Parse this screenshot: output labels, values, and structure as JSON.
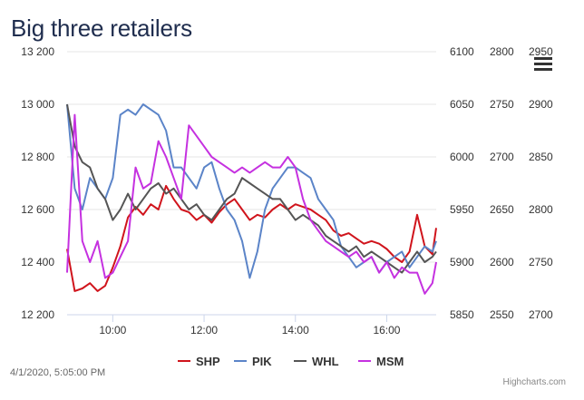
{
  "title": "Big three retailers",
  "timestamp": "4/1/2020, 5:05:00 PM",
  "credits": "Highcharts.com",
  "menu_icon": "hamburger-menu-icon",
  "chart_data": {
    "type": "line",
    "title": "Big three retailers",
    "x_ticks": [
      "10:00",
      "12:00",
      "14:00",
      "16:00"
    ],
    "x_range": [
      "09:00",
      "17:05"
    ],
    "axes": [
      {
        "id": "shp",
        "ticks": [
          "13 200",
          "13 000",
          "12 800",
          "12 600",
          "12 400",
          "12 200"
        ],
        "range": [
          12200,
          13200
        ]
      },
      {
        "id": "pik",
        "ticks": [
          "6100",
          "6050",
          "6000",
          "5950",
          "5900",
          "5850"
        ],
        "range": [
          5850,
          6100
        ]
      },
      {
        "id": "whl",
        "ticks": [
          "2800",
          "2750",
          "2700",
          "2650",
          "2600",
          "2550"
        ],
        "range": [
          2550,
          2800
        ]
      },
      {
        "id": "msm",
        "ticks": [
          "2950",
          "2900",
          "2850",
          "2800",
          "2750",
          "2700"
        ],
        "range": [
          2700,
          2950
        ]
      }
    ],
    "grid": true,
    "legend_position": "bottom",
    "series": [
      {
        "name": "SHP",
        "color": "#d0141c",
        "axis": "shp",
        "x": [
          "09:00",
          "09:10",
          "09:20",
          "09:30",
          "09:40",
          "09:50",
          "10:00",
          "10:10",
          "10:20",
          "10:30",
          "10:40",
          "10:50",
          "11:00",
          "11:10",
          "11:20",
          "11:30",
          "11:40",
          "11:50",
          "12:00",
          "12:10",
          "12:20",
          "12:30",
          "12:40",
          "12:50",
          "13:00",
          "13:10",
          "13:20",
          "13:30",
          "13:40",
          "13:50",
          "14:00",
          "14:10",
          "14:20",
          "14:30",
          "14:40",
          "14:50",
          "15:00",
          "15:10",
          "15:20",
          "15:30",
          "15:40",
          "15:50",
          "16:00",
          "16:10",
          "16:20",
          "16:30",
          "16:40",
          "16:50",
          "17:00",
          "17:05"
        ],
        "values": [
          12450,
          12290,
          12300,
          12320,
          12290,
          12310,
          12380,
          12460,
          12570,
          12610,
          12580,
          12620,
          12600,
          12690,
          12640,
          12600,
          12590,
          12560,
          12580,
          12550,
          12590,
          12620,
          12640,
          12600,
          12560,
          12580,
          12570,
          12600,
          12620,
          12600,
          12620,
          12610,
          12600,
          12580,
          12560,
          12520,
          12500,
          12510,
          12490,
          12470,
          12480,
          12470,
          12450,
          12420,
          12400,
          12440,
          12580,
          12460,
          12430,
          12530
        ]
      },
      {
        "name": "PIK",
        "color": "#5b84c8",
        "axis": "pik",
        "x": [
          "09:00",
          "09:10",
          "09:20",
          "09:30",
          "09:40",
          "09:50",
          "10:00",
          "10:10",
          "10:20",
          "10:30",
          "10:40",
          "10:50",
          "11:00",
          "11:10",
          "11:20",
          "11:30",
          "11:40",
          "11:50",
          "12:00",
          "12:10",
          "12:20",
          "12:30",
          "12:40",
          "12:50",
          "13:00",
          "13:10",
          "13:20",
          "13:30",
          "13:40",
          "13:50",
          "14:00",
          "14:10",
          "14:20",
          "14:30",
          "14:40",
          "14:50",
          "15:00",
          "15:10",
          "15:20",
          "15:30",
          "15:40",
          "15:50",
          "16:00",
          "16:10",
          "16:20",
          "16:30",
          "16:40",
          "16:50",
          "17:00",
          "17:05"
        ],
        "values": [
          6050,
          5970,
          5950,
          5980,
          5970,
          5960,
          5980,
          6040,
          6045,
          6040,
          6050,
          6045,
          6040,
          6025,
          5990,
          5990,
          5980,
          5970,
          5990,
          5995,
          5970,
          5950,
          5940,
          5920,
          5885,
          5910,
          5950,
          5970,
          5980,
          5990,
          5990,
          5985,
          5980,
          5960,
          5950,
          5940,
          5915,
          5905,
          5895,
          5900,
          5905,
          5890,
          5900,
          5905,
          5910,
          5895,
          5905,
          5915,
          5910,
          5920
        ]
      },
      {
        "name": "WHL",
        "color": "#555555",
        "axis": "whl",
        "x": [
          "09:00",
          "09:10",
          "09:20",
          "09:30",
          "09:40",
          "09:50",
          "10:00",
          "10:10",
          "10:20",
          "10:30",
          "10:40",
          "10:50",
          "11:00",
          "11:10",
          "11:20",
          "11:30",
          "11:40",
          "11:50",
          "12:00",
          "12:10",
          "12:20",
          "12:30",
          "12:40",
          "12:50",
          "13:00",
          "13:10",
          "13:20",
          "13:30",
          "13:40",
          "13:50",
          "14:00",
          "14:10",
          "14:20",
          "14:30",
          "14:40",
          "14:50",
          "15:00",
          "15:10",
          "15:20",
          "15:30",
          "15:40",
          "15:50",
          "16:00",
          "16:10",
          "16:20",
          "16:30",
          "16:40",
          "16:50",
          "17:00",
          "17:05"
        ],
        "values": [
          2750,
          2710,
          2695,
          2690,
          2670,
          2660,
          2640,
          2650,
          2665,
          2650,
          2660,
          2670,
          2675,
          2665,
          2670,
          2660,
          2650,
          2655,
          2645,
          2640,
          2650,
          2660,
          2665,
          2680,
          2675,
          2670,
          2665,
          2660,
          2660,
          2650,
          2640,
          2645,
          2640,
          2635,
          2625,
          2620,
          2615,
          2610,
          2615,
          2605,
          2610,
          2605,
          2600,
          2595,
          2590,
          2600,
          2610,
          2600,
          2605,
          2610
        ]
      },
      {
        "name": "MSM",
        "color": "#c531e0",
        "axis": "msm",
        "x": [
          "09:00",
          "09:10",
          "09:20",
          "09:30",
          "09:40",
          "09:50",
          "10:00",
          "10:10",
          "10:20",
          "10:30",
          "10:40",
          "10:50",
          "11:00",
          "11:10",
          "11:20",
          "11:30",
          "11:40",
          "11:50",
          "12:00",
          "12:10",
          "12:20",
          "12:30",
          "12:40",
          "12:50",
          "13:00",
          "13:10",
          "13:20",
          "13:30",
          "13:40",
          "13:50",
          "14:00",
          "14:10",
          "14:20",
          "14:30",
          "14:40",
          "14:50",
          "15:00",
          "15:10",
          "15:20",
          "15:30",
          "15:40",
          "15:50",
          "16:00",
          "16:10",
          "16:20",
          "16:30",
          "16:40",
          "16:50",
          "17:00",
          "17:05"
        ],
        "values": [
          2740,
          2890,
          2770,
          2750,
          2770,
          2735,
          2740,
          2755,
          2770,
          2840,
          2820,
          2825,
          2865,
          2850,
          2830,
          2810,
          2880,
          2870,
          2860,
          2850,
          2845,
          2840,
          2835,
          2840,
          2835,
          2840,
          2845,
          2840,
          2840,
          2850,
          2840,
          2810,
          2790,
          2780,
          2770,
          2765,
          2760,
          2755,
          2760,
          2750,
          2755,
          2740,
          2750,
          2735,
          2745,
          2740,
          2740,
          2720,
          2730,
          2750
        ]
      }
    ]
  }
}
